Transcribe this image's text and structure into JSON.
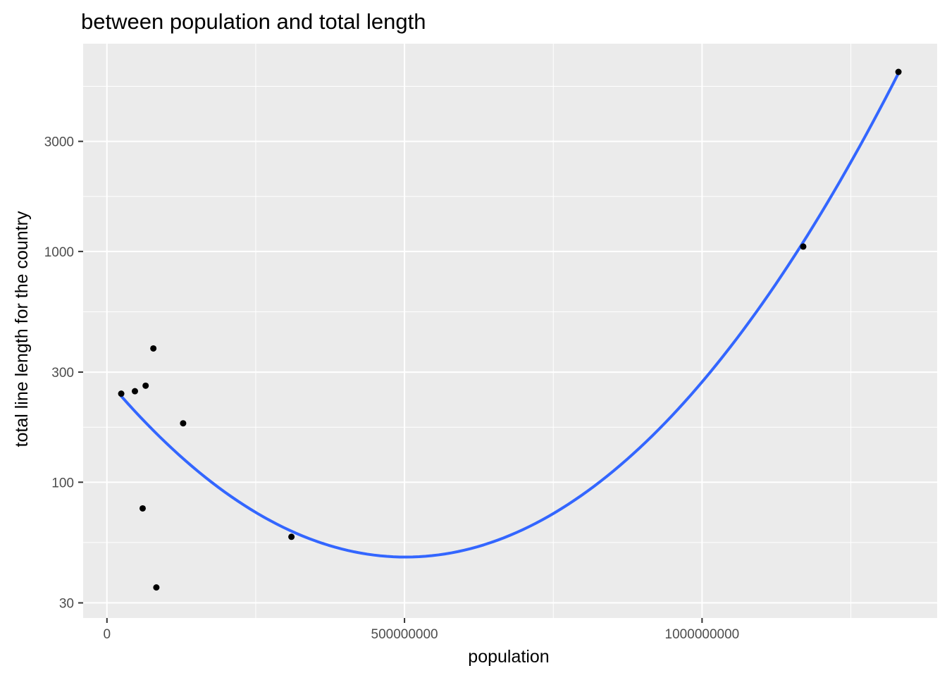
{
  "chart_data": {
    "type": "scatter",
    "title": "between population and total length",
    "xlabel": "population",
    "ylabel": "total line length for the country",
    "x_ticks": [
      {
        "value": 0,
        "label": "0"
      },
      {
        "value": 500000000,
        "label": "500000000"
      },
      {
        "value": 1000000000,
        "label": "1000000000"
      }
    ],
    "y_ticks": [
      {
        "value": 30,
        "label": "30"
      },
      {
        "value": 100,
        "label": "100"
      },
      {
        "value": 300,
        "label": "300"
      },
      {
        "value": 1000,
        "label": "1000"
      },
      {
        "value": 3000,
        "label": "3000"
      }
    ],
    "y_scale": "log10",
    "xlim": [
      -40000000,
      1395000000
    ],
    "ylim": [
      25.8,
      7950
    ],
    "grid": true,
    "legend": "none",
    "points": [
      {
        "x": 24000000,
        "y": 242
      },
      {
        "x": 47000000,
        "y": 248
      },
      {
        "x": 65000000,
        "y": 262
      },
      {
        "x": 60000000,
        "y": 77
      },
      {
        "x": 78000000,
        "y": 380
      },
      {
        "x": 83000000,
        "y": 35
      },
      {
        "x": 128000000,
        "y": 180
      },
      {
        "x": 310000000,
        "y": 58
      },
      {
        "x": 1170000000,
        "y": 1050
      },
      {
        "x": 1330000000,
        "y": 6000
      }
    ],
    "smooth": {
      "method": "quadratic",
      "x_range": [
        24000000,
        1330000000
      ],
      "y_at_min": 236,
      "y_at_max": 5920,
      "y_min_point": {
        "x": 520000000,
        "y": 47.5
      }
    },
    "colors": {
      "panel": "#ebebeb",
      "grid": "#ffffff",
      "point": "#000000",
      "smooth_line": "#3366ff"
    }
  }
}
